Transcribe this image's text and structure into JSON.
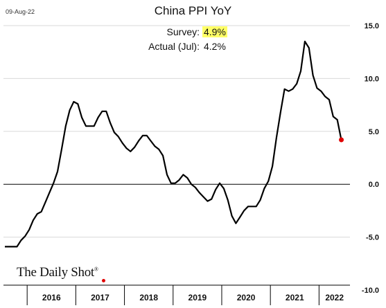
{
  "date_stamp": "09-Aug-22",
  "brand": "The Daily Shot",
  "brand_mark": "®",
  "annotations": {
    "survey_label": "Survey:",
    "survey_value": "4.9%",
    "actual_label": "Actual (Jul):",
    "actual_value": "4.2%",
    "highlight_color": "#ffff66"
  },
  "colors": {
    "line": "#000000",
    "marker": "#e00000",
    "zero_line": "#000000",
    "grid": "#d9d9d9"
  },
  "chart_data": {
    "type": "line",
    "title": "China PPI YoY",
    "x_tick_labels": [
      "2016",
      "2017",
      "2018",
      "2019",
      "2020",
      "2021",
      "2022"
    ],
    "y_tick_labels": [
      "15.0",
      "10.0",
      "5.0",
      "0.0",
      "-5.0",
      "-10.0"
    ],
    "ylim": [
      -10,
      15
    ],
    "y_axis_side": "right",
    "grid": "horizontal",
    "x_start": "2015-07",
    "series": [
      {
        "values": [
          -5.9,
          -5.9,
          -5.9,
          -5.9,
          -5.3,
          -4.9,
          -4.3,
          -3.4,
          -2.8,
          -2.6,
          -1.7,
          -0.8,
          0.1,
          1.2,
          3.3,
          5.5,
          7.0,
          7.8,
          7.6,
          6.3,
          5.5,
          5.5,
          5.5,
          6.3,
          6.9,
          6.9,
          5.8,
          4.9,
          4.5,
          3.9,
          3.4,
          3.1,
          3.5,
          4.1,
          4.6,
          4.6,
          4.1,
          3.6,
          3.3,
          2.7,
          0.9,
          0.1,
          0.1,
          0.4,
          0.9,
          0.6,
          0.0,
          -0.3,
          -0.8,
          -1.2,
          -1.6,
          -1.4,
          -0.5,
          0.1,
          -0.4,
          -1.5,
          -3.0,
          -3.7,
          -3.1,
          -2.5,
          -2.1,
          -2.1,
          -2.1,
          -1.5,
          -0.4,
          0.3,
          1.7,
          4.4,
          6.8,
          9.0,
          8.8,
          9.0,
          9.5,
          10.7,
          13.5,
          12.9,
          10.3,
          9.1,
          8.8,
          8.3,
          8.0,
          6.4,
          6.1,
          4.2
        ]
      }
    ],
    "last_point_marker": true
  }
}
